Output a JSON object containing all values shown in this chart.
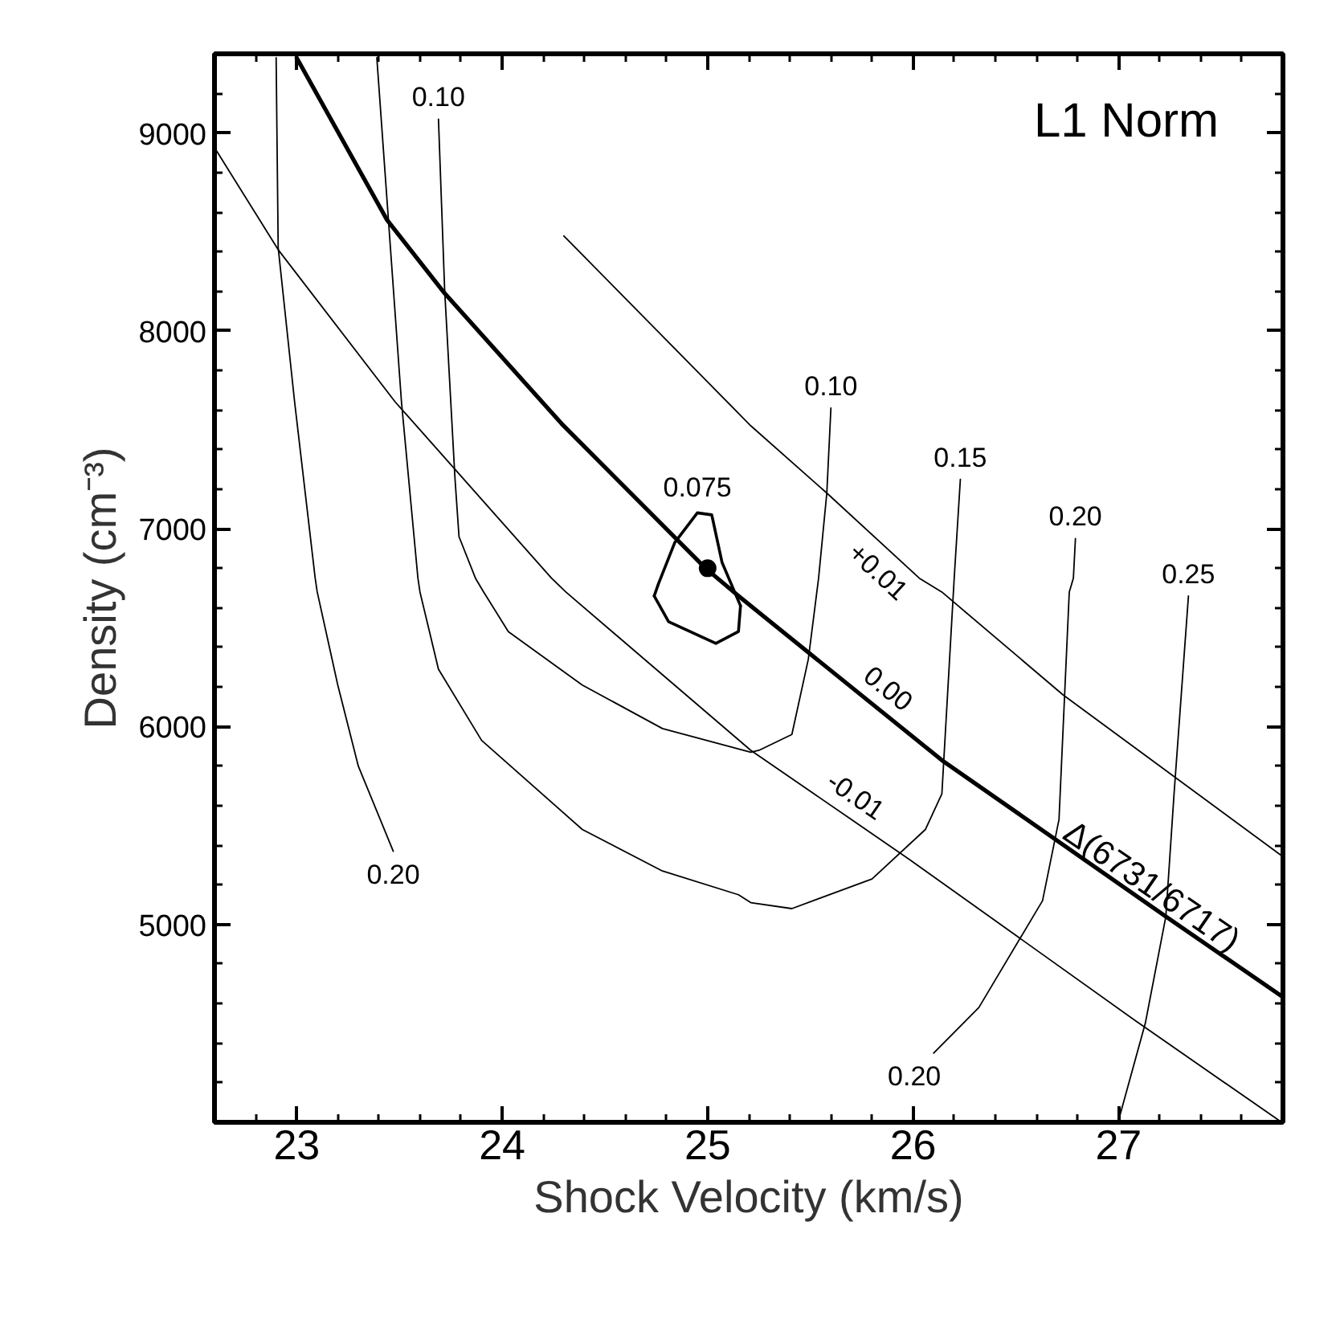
{
  "chart_data": {
    "type": "line",
    "title": "L1 Norm",
    "xlabel": "Shock Velocity (km/s)",
    "ylabel": "Density (cm⁻³)",
    "xlim": [
      22.6,
      27.8
    ],
    "ylim": [
      4000,
      9400
    ],
    "xticks": [
      23,
      24,
      25,
      26,
      27
    ],
    "yticks": [
      5000,
      6000,
      7000,
      8000,
      9000
    ],
    "series": [
      {
        "name": "0.00",
        "color": "#000000",
        "x": [
          23.0,
          23.44,
          23.72,
          24.29,
          24.99,
          25.15,
          26.14,
          27.23,
          27.79
        ],
        "values": [
          9380,
          8560,
          8190,
          7530,
          6800,
          6660,
          5830,
          5040,
          4640
        ]
      },
      {
        "name": "+0.01",
        "color": "#000000",
        "x": [
          24.3,
          25.21,
          25.58,
          26.03,
          26.14,
          26.73,
          27.79
        ],
        "values": [
          8480,
          7520,
          7180,
          6750,
          6680,
          6160,
          5350
        ]
      },
      {
        "name": "-0.01",
        "color": "#000000",
        "x": [
          22.61,
          22.91,
          23.48,
          24.24,
          24.31,
          25.21,
          25.98,
          27.1,
          27.78
        ],
        "values": [
          8910,
          8410,
          7640,
          6750,
          6680,
          5880,
          5330,
          4500,
          4010
        ]
      },
      {
        "name": "0.10",
        "color": "#000000",
        "x": [
          23.69,
          23.72,
          23.77,
          23.79,
          23.87,
          23.91,
          24.03,
          24.39,
          24.78,
          25.21,
          25.25,
          25.41,
          25.49,
          25.54,
          25.58,
          25.6
        ],
        "values": [
          9070,
          8210,
          7260,
          6960,
          6750,
          6680,
          6480,
          6210,
          5990,
          5870,
          5880,
          5960,
          6340,
          6750,
          7180,
          7610
        ]
      },
      {
        "name": "0.15",
        "color": "#000000",
        "x": [
          23.39,
          23.51,
          23.59,
          23.6,
          23.69,
          23.9,
          24.39,
          24.78,
          25.15,
          25.21,
          25.41,
          25.8,
          26.06,
          26.14,
          26.2,
          26.23
        ],
        "values": [
          9380,
          7640,
          6750,
          6680,
          6290,
          5930,
          5480,
          5270,
          5150,
          5110,
          5080,
          5230,
          5480,
          5660,
          6750,
          7250
        ]
      },
      {
        "name": "0.20",
        "color": "#000000",
        "x": [
          22.9,
          22.91,
          22.99,
          23.09,
          23.1,
          23.2,
          23.3,
          23.47
        ],
        "values": [
          9380,
          8420,
          7640,
          6750,
          6680,
          6210,
          5800,
          5370
        ]
      },
      {
        "name": "0.20",
        "color": "#000000",
        "x": [
          26.79,
          26.78,
          26.76,
          26.71,
          26.63,
          26.32,
          26.1
        ],
        "values": [
          6950,
          6750,
          6680,
          5530,
          5120,
          4580,
          4350
        ]
      },
      {
        "name": "0.25",
        "color": "#000000",
        "x": [
          27.34,
          27.27,
          27.23,
          27.13,
          27.0
        ],
        "values": [
          6660,
          5660,
          5040,
          4500,
          4010
        ]
      },
      {
        "name": "0.075",
        "color": "#000000",
        "x": [
          24.74,
          24.76,
          24.84,
          24.95,
          25.02,
          25.07,
          25.16
        ],
        "values": [
          6660,
          6720,
          6930,
          7080,
          7070,
          6830,
          6610
        ]
      },
      {
        "color": "#000000",
        "x": [
          24.74,
          24.81,
          25.04,
          25.15,
          25.16
        ],
        "values": [
          6660,
          6530,
          6420,
          6480,
          6610
        ]
      },
      {
        "type": "scatter",
        "marker": "circle",
        "color": "#000000",
        "x": [
          25.0
        ],
        "values": [
          6800
        ]
      }
    ],
    "annotations": [
      {
        "text": "Δ(6731/6717)",
        "x": 27.09,
        "y": 5083
      }
    ]
  }
}
